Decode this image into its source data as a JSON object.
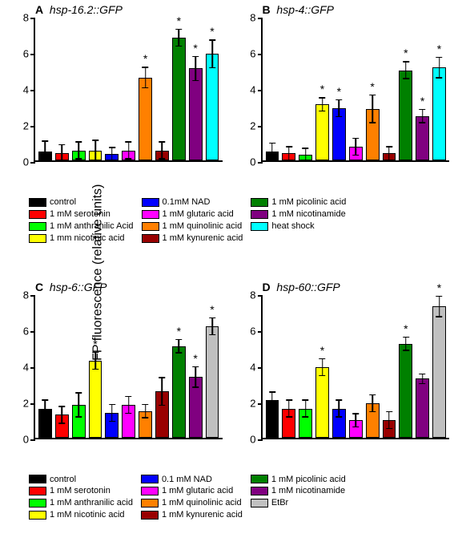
{
  "ylabel": "GFP fluorescence (relative units)",
  "ymax": 8,
  "ytick_step": 2,
  "yticks": [
    0,
    2,
    4,
    6,
    8
  ],
  "colors": {
    "control": "#000000",
    "serotonin": "#ff0000",
    "anthranilic": "#00ff00",
    "nicotinic": "#ffff00",
    "nad": "#0000ff",
    "glutaric": "#ff00ff",
    "quinolinic": "#ff8000",
    "kynurenic": "#990000",
    "picolinic": "#008000",
    "nicotinamide": "#800080",
    "heatshock": "#00ffff",
    "etbr": "#c0c0c0"
  },
  "panels": {
    "A": {
      "title_letter": "A",
      "title_gene": "hsp-16.2::GFP",
      "bars": [
        {
          "k": "control",
          "v": 0.5,
          "e": 0.6
        },
        {
          "k": "serotonin",
          "v": 0.4,
          "e": 0.5
        },
        {
          "k": "anthranilic",
          "v": 0.55,
          "e": 0.5
        },
        {
          "k": "nicotinic",
          "v": 0.55,
          "e": 0.6
        },
        {
          "k": "nad",
          "v": 0.35,
          "e": 0.4
        },
        {
          "k": "glutaric",
          "v": 0.55,
          "e": 0.5
        },
        {
          "k": "quinolinic",
          "v": 4.6,
          "e": 0.6,
          "s": true
        },
        {
          "k": "kynurenic",
          "v": 0.55,
          "e": 0.5
        },
        {
          "k": "picolinic",
          "v": 6.8,
          "e": 0.5,
          "s": true
        },
        {
          "k": "nicotinamide",
          "v": 5.1,
          "e": 0.7,
          "s": true
        },
        {
          "k": "heatshock",
          "v": 5.9,
          "e": 0.8,
          "s": true
        }
      ]
    },
    "B": {
      "title_letter": "B",
      "title_gene": "hsp-4::GFP",
      "bars": [
        {
          "k": "control",
          "v": 0.5,
          "e": 0.5
        },
        {
          "k": "serotonin",
          "v": 0.4,
          "e": 0.4
        },
        {
          "k": "anthranilic",
          "v": 0.3,
          "e": 0.4
        },
        {
          "k": "nicotinic",
          "v": 3.1,
          "e": 0.4,
          "s": true
        },
        {
          "k": "nad",
          "v": 2.9,
          "e": 0.5,
          "s": true
        },
        {
          "k": "glutaric",
          "v": 0.75,
          "e": 0.5
        },
        {
          "k": "quinolinic",
          "v": 2.85,
          "e": 0.8,
          "s": true
        },
        {
          "k": "kynurenic",
          "v": 0.4,
          "e": 0.4
        },
        {
          "k": "picolinic",
          "v": 5.0,
          "e": 0.5,
          "s": true
        },
        {
          "k": "nicotinamide",
          "v": 2.45,
          "e": 0.4,
          "s": true
        },
        {
          "k": "heatshock",
          "v": 5.15,
          "e": 0.6,
          "s": true
        }
      ]
    },
    "C": {
      "title_letter": "C",
      "title_gene": "hsp-6::GFP",
      "bars": [
        {
          "k": "control",
          "v": 1.6,
          "e": 0.5
        },
        {
          "k": "serotonin",
          "v": 1.25,
          "e": 0.5
        },
        {
          "k": "anthranilic",
          "v": 1.8,
          "e": 0.7
        },
        {
          "k": "nicotinic",
          "v": 4.25,
          "e": 0.5,
          "s": true
        },
        {
          "k": "nad",
          "v": 1.35,
          "e": 0.5
        },
        {
          "k": "glutaric",
          "v": 1.8,
          "e": 0.5
        },
        {
          "k": "quinolinic",
          "v": 1.45,
          "e": 0.4
        },
        {
          "k": "kynurenic",
          "v": 2.55,
          "e": 0.8
        },
        {
          "k": "picolinic",
          "v": 5.05,
          "e": 0.4,
          "s": true
        },
        {
          "k": "nicotinamide",
          "v": 3.35,
          "e": 0.6,
          "s": true
        },
        {
          "k": "etbr",
          "v": 6.15,
          "e": 0.5,
          "s": true
        }
      ]
    },
    "D": {
      "title_letter": "D",
      "title_gene": "hsp-60::GFP",
      "bars": [
        {
          "k": "control",
          "v": 2.05,
          "e": 0.5
        },
        {
          "k": "serotonin",
          "v": 1.6,
          "e": 0.5
        },
        {
          "k": "anthranilic",
          "v": 1.6,
          "e": 0.5
        },
        {
          "k": "nicotinic",
          "v": 3.9,
          "e": 0.5,
          "s": true
        },
        {
          "k": "nad",
          "v": 1.6,
          "e": 0.5
        },
        {
          "k": "glutaric",
          "v": 0.95,
          "e": 0.4
        },
        {
          "k": "quinolinic",
          "v": 1.9,
          "e": 0.5
        },
        {
          "k": "kynurenic",
          "v": 0.95,
          "e": 0.5
        },
        {
          "k": "picolinic",
          "v": 5.2,
          "e": 0.4,
          "s": true
        },
        {
          "k": "nicotinamide",
          "v": 3.25,
          "e": 0.3
        },
        {
          "k": "etbr",
          "v": 7.25,
          "e": 0.6,
          "s": true
        }
      ]
    }
  },
  "legend1": [
    [
      {
        "k": "control",
        "t": "control"
      },
      {
        "k": "serotonin",
        "t": "1 mM serotonin"
      },
      {
        "k": "anthranilic",
        "t": "1 mM anthranilic Acid"
      },
      {
        "k": "nicotinic",
        "t": "1 mm nicotinic acid"
      }
    ],
    [
      {
        "k": "nad",
        "t": "0.1mM NAD"
      },
      {
        "k": "glutaric",
        "t": "1 mM glutaric acid"
      },
      {
        "k": "quinolinic",
        "t": "1 mM quinolinic acid"
      },
      {
        "k": "kynurenic",
        "t": "1 mM kynurenic acid"
      }
    ],
    [
      {
        "k": "picolinic",
        "t": "1 mM picolinic acid"
      },
      {
        "k": "nicotinamide",
        "t": "1 mM nicotinamide"
      },
      {
        "k": "heatshock",
        "t": "heat shock"
      }
    ]
  ],
  "legend2": [
    [
      {
        "k": "control",
        "t": "control"
      },
      {
        "k": "serotonin",
        "t": "1 mM serotonin"
      },
      {
        "k": "anthranilic",
        "t": "1 mM anthranilic acid"
      },
      {
        "k": "nicotinic",
        "t": "1 mM nicotinic acid"
      }
    ],
    [
      {
        "k": "nad",
        "t": "0.1 mM NAD"
      },
      {
        "k": "glutaric",
        "t": "1 mM glutaric acid"
      },
      {
        "k": "quinolinic",
        "t": "1 mM quinolinic acid"
      },
      {
        "k": "kynurenic",
        "t": "1 mM kynurenic acid"
      }
    ],
    [
      {
        "k": "picolinic",
        "t": "1 mM picolinic acid"
      },
      {
        "k": "nicotinamide",
        "t": "1 mM nicotinamide"
      },
      {
        "k": "etbr",
        "t": "EtBr"
      }
    ]
  ]
}
